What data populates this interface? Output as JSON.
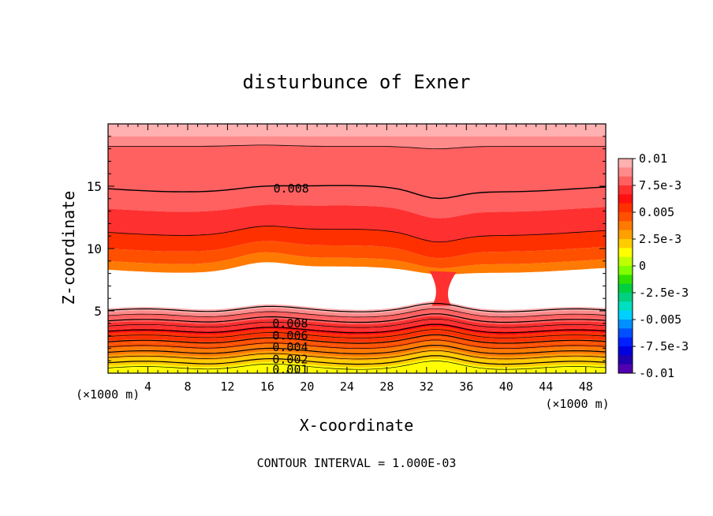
{
  "chart_data": {
    "type": "heatmap",
    "title": "disturbunce of Exner",
    "xlabel": "X-coordinate",
    "ylabel": "Z-coordinate",
    "x_unit_left": "(×1000 m)",
    "x_unit_right": "(×1000 m)",
    "footer": "CONTOUR INTERVAL = 1.000E-03",
    "xlim": [
      0,
      50
    ],
    "ylim": [
      0,
      20
    ],
    "x_ticks": [
      4,
      8,
      12,
      16,
      20,
      24,
      28,
      32,
      36,
      40,
      44,
      48
    ],
    "y_ticks": [
      5,
      10,
      15
    ],
    "contour_labels": [
      {
        "text": "0.008",
        "x": 18.4,
        "z": 14.8
      },
      {
        "text": "0.008",
        "x": 18.3,
        "z": 4.0
      },
      {
        "text": "0.006",
        "x": 18.3,
        "z": 3.0
      },
      {
        "text": "0.004",
        "x": 18.3,
        "z": 2.1
      },
      {
        "text": "0.002",
        "x": 18.3,
        "z": 1.1
      },
      {
        "text": "0.001",
        "x": 18.3,
        "z": 0.3
      }
    ],
    "colorbar": {
      "min": -0.01,
      "max": 0.01,
      "labels": [
        "0.01",
        "7.5e-3",
        "0.005",
        "2.5e-3",
        "0",
        "-2.5e-3",
        "-0.005",
        "-7.5e-3",
        "-0.01"
      ],
      "colors": [
        "#ffb0b0",
        "#ff8a8a",
        "#ff6060",
        "#ff3030",
        "#ff1010",
        "#ff3000",
        "#ff5000",
        "#ff7a00",
        "#ffa000",
        "#ffcc00",
        "#ffff00",
        "#c0ff00",
        "#80ff00",
        "#30e000",
        "#00d040",
        "#00d080",
        "#00e0c0",
        "#00d0ff",
        "#0090ff",
        "#0050ff",
        "#0020ff",
        "#0000e0",
        "#2000b0",
        "#5000b0"
      ]
    },
    "upper_band_values": [
      0.0105,
      0.0095,
      0.0085,
      0.008,
      0.007,
      0.006,
      0.005,
      0.004
    ],
    "lower_band_values": [
      0.001,
      0.0015,
      0.002,
      0.0025,
      0.003,
      0.0035,
      0.004,
      0.0045,
      0.005,
      0.0055,
      0.006,
      0.0065,
      0.007,
      0.0075,
      0.008,
      0.0085,
      0.009,
      0.01
    ],
    "white_region": "undefined values between z≈5 and z≈8.5"
  }
}
